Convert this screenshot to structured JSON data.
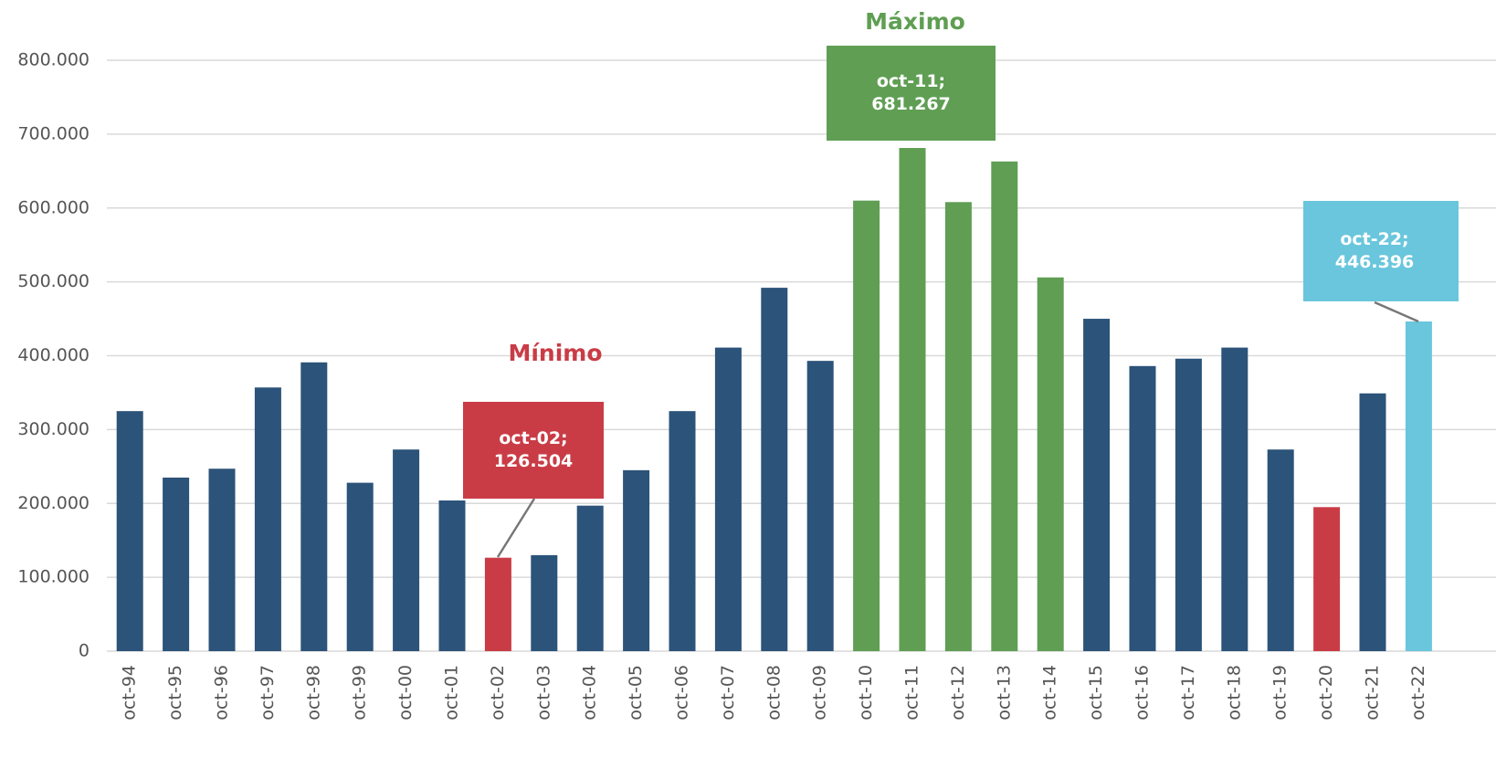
{
  "chart_data": {
    "type": "bar",
    "categories": [
      "oct-94",
      "oct-95",
      "oct-96",
      "oct-97",
      "oct-98",
      "oct-99",
      "oct-00",
      "oct-01",
      "oct-02",
      "oct-03",
      "oct-04",
      "oct-05",
      "oct-06",
      "oct-07",
      "oct-08",
      "oct-09",
      "oct-10",
      "oct-11",
      "oct-12",
      "oct-13",
      "oct-14",
      "oct-15",
      "oct-16",
      "oct-17",
      "oct-18",
      "oct-19",
      "oct-20",
      "oct-21",
      "oct-22"
    ],
    "values": [
      325000,
      235000,
      247000,
      357000,
      391000,
      228000,
      273000,
      204000,
      126504,
      130000,
      197000,
      245000,
      325000,
      411000,
      492000,
      393000,
      610000,
      681267,
      608000,
      663000,
      506000,
      450000,
      386000,
      396000,
      411000,
      273000,
      195000,
      349000,
      446396
    ],
    "colors": [
      "#2c5379",
      "#2c5379",
      "#2c5379",
      "#2c5379",
      "#2c5379",
      "#2c5379",
      "#2c5379",
      "#2c5379",
      "#c93c46",
      "#2c5379",
      "#2c5379",
      "#2c5379",
      "#2c5379",
      "#2c5379",
      "#2c5379",
      "#2c5379",
      "#5f9e53",
      "#5f9e53",
      "#5f9e53",
      "#5f9e53",
      "#5f9e53",
      "#2c5379",
      "#2c5379",
      "#2c5379",
      "#2c5379",
      "#2c5379",
      "#c93c46",
      "#2c5379",
      "#69c6dc"
    ],
    "ylim": [
      0,
      800000
    ],
    "yticks": [
      0,
      {
        "value": 100000,
        "label": "100.000"
      },
      {
        "value": 200000,
        "label": "200.000"
      },
      {
        "value": 300000,
        "label": "300.000"
      },
      {
        "value": 400000,
        "label": "400.000"
      },
      {
        "value": 500000,
        "label": "500.000"
      },
      {
        "value": 600000,
        "label": "600.000"
      },
      {
        "value": 700000,
        "label": "700.000"
      },
      {
        "value": 800000,
        "label": "800.000"
      }
    ],
    "grid": true,
    "annotations": [
      {
        "heading": "Mínimo",
        "lines": [
          "oct-02;",
          "126.504"
        ],
        "color": "#c93c46"
      },
      {
        "heading": "Máximo",
        "lines": [
          "oct-11;",
          "681.267"
        ],
        "color": "#5f9e53"
      },
      {
        "lines": [
          "oct-22;",
          "446.396"
        ],
        "color": "#69c6dc"
      }
    ]
  }
}
